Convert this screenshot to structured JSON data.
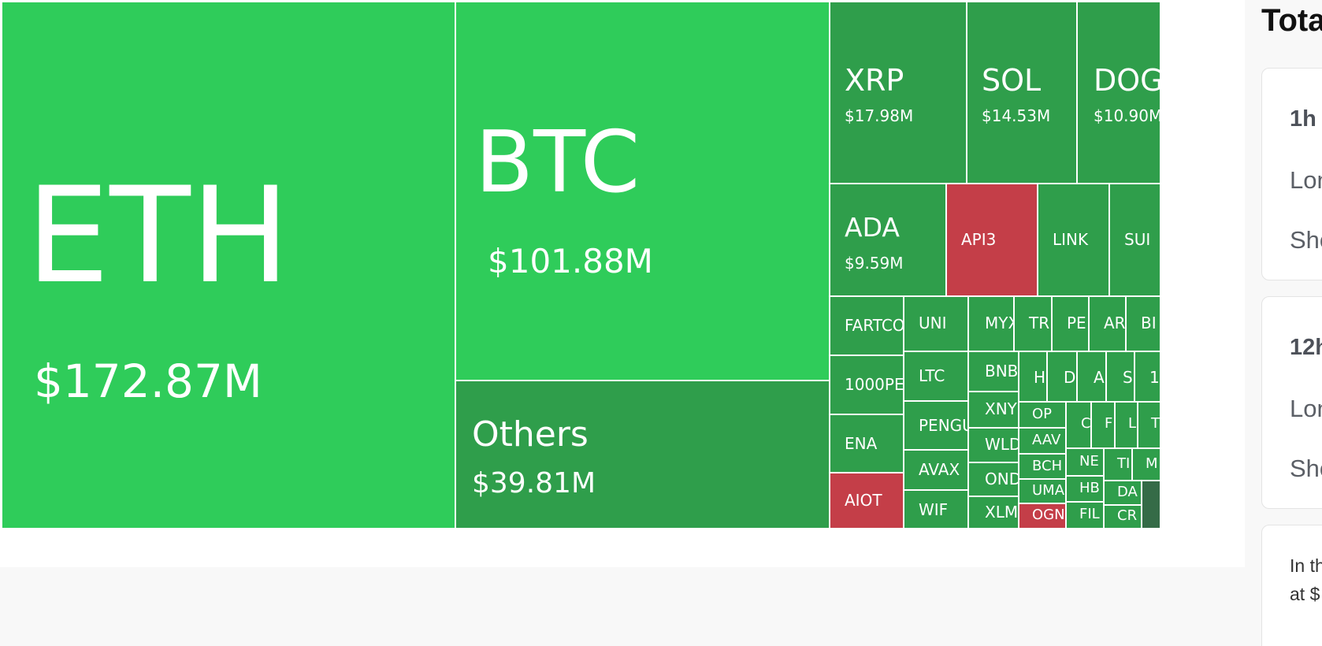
{
  "colors": {
    "up_bright": "#2fcc5a",
    "up": "#2f9e4b",
    "down": "#c43e48",
    "up_dark": "#356b47"
  },
  "treemap": {
    "cells": [
      {
        "symbol": "ETH",
        "value": "$172.87M",
        "color": "up_bright"
      },
      {
        "symbol": "BTC",
        "value": "$101.88M",
        "color": "up_bright"
      },
      {
        "symbol": "Others",
        "value": "$39.81M",
        "color": "up"
      },
      {
        "symbol": "XRP",
        "value": "$17.98M",
        "color": "up"
      },
      {
        "symbol": "SOL",
        "value": "$14.53M",
        "color": "up"
      },
      {
        "symbol": "DOG",
        "value": "$10.90M",
        "color": "up"
      },
      {
        "symbol": "ADA",
        "value": "$9.59M",
        "color": "up"
      },
      {
        "symbol": "API3",
        "color": "down"
      },
      {
        "symbol": "LINK",
        "color": "up"
      },
      {
        "symbol": "SUI",
        "color": "up"
      },
      {
        "symbol": "FARTCO",
        "color": "up"
      },
      {
        "symbol": "1000PE",
        "color": "up"
      },
      {
        "symbol": "ENA",
        "color": "up"
      },
      {
        "symbol": "AIOT",
        "color": "down"
      },
      {
        "symbol": "UNI",
        "color": "up"
      },
      {
        "symbol": "LTC",
        "color": "up"
      },
      {
        "symbol": "PENGU",
        "color": "up"
      },
      {
        "symbol": "AVAX",
        "color": "up"
      },
      {
        "symbol": "WIF",
        "color": "up"
      },
      {
        "symbol": "MYX",
        "color": "up"
      },
      {
        "symbol": "TR",
        "color": "up"
      },
      {
        "symbol": "PE",
        "color": "up"
      },
      {
        "symbol": "AR",
        "color": "up"
      },
      {
        "symbol": "BI",
        "color": "up"
      },
      {
        "symbol": "BNB",
        "color": "up"
      },
      {
        "symbol": "XNY",
        "color": "up"
      },
      {
        "symbol": "WLD",
        "color": "up"
      },
      {
        "symbol": "OND",
        "color": "up"
      },
      {
        "symbol": "XLM",
        "color": "up"
      },
      {
        "symbol": "H",
        "color": "up"
      },
      {
        "symbol": "D",
        "color": "up"
      },
      {
        "symbol": "A",
        "color": "up"
      },
      {
        "symbol": "S",
        "color": "up"
      },
      {
        "symbol": "1",
        "color": "up"
      },
      {
        "symbol": "OP",
        "color": "up"
      },
      {
        "symbol": "AAV",
        "color": "up"
      },
      {
        "symbol": "BCH",
        "color": "up"
      },
      {
        "symbol": "UMA",
        "color": "up"
      },
      {
        "symbol": "OGN",
        "color": "down"
      },
      {
        "symbol": "C",
        "color": "up"
      },
      {
        "symbol": "F",
        "color": "up"
      },
      {
        "symbol": "L",
        "color": "up"
      },
      {
        "symbol": "T",
        "color": "up"
      },
      {
        "symbol": "NE",
        "color": "up"
      },
      {
        "symbol": "TI",
        "color": "up"
      },
      {
        "symbol": "M",
        "color": "up"
      },
      {
        "symbol": "HB",
        "color": "up"
      },
      {
        "symbol": "DA",
        "color": "up"
      },
      {
        "symbol": "FIL",
        "color": "up"
      },
      {
        "symbol": "CR",
        "color": "up"
      },
      {
        "symbol": "",
        "color": "up_dark"
      }
    ]
  },
  "sidebar": {
    "title": "Tota",
    "card_1h": {
      "period": "1h",
      "long": "Lon",
      "short": "Sho"
    },
    "card_12h": {
      "period": "12h",
      "long": "Lon",
      "short": "Sho"
    },
    "note": {
      "line1": "In th",
      "line2": "at $"
    }
  }
}
